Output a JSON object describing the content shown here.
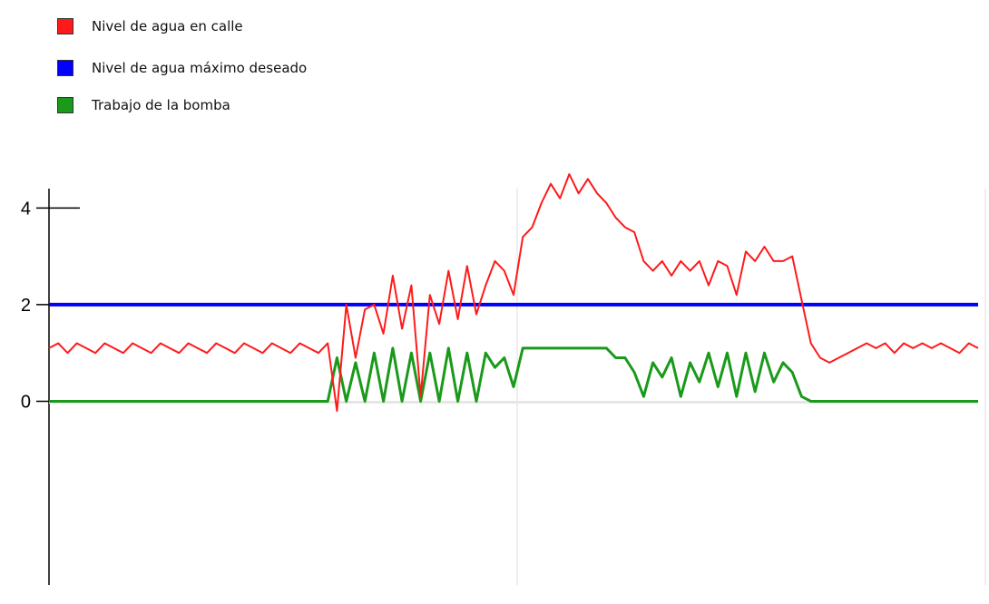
{
  "legend": {
    "items": [
      {
        "label": "Nivel de agua en calle",
        "color": "#ff1a1a"
      },
      {
        "label": "Nivel de agua máximo deseado",
        "color": "#0000ff"
      },
      {
        "label": "Trabajo de la bomba",
        "color": "#1a9a1a"
      }
    ]
  },
  "chart_data": {
    "type": "line",
    "title": "",
    "xlabel": "",
    "ylabel": "",
    "ylim": [
      -3.8,
      4.4
    ],
    "yticks": [
      0,
      2,
      4
    ],
    "ytick_labels": [
      "0",
      "2",
      "4"
    ],
    "grid": false,
    "legend_position": "top-left",
    "x": [
      0,
      10,
      20,
      30,
      40,
      50,
      60,
      70,
      80,
      90,
      100,
      110,
      120,
      130,
      140,
      150,
      160,
      170,
      180,
      190,
      200,
      210,
      220,
      230,
      240,
      250,
      260,
      270,
      280,
      290,
      300,
      310,
      320,
      330,
      340,
      350,
      360,
      370,
      380,
      390,
      400,
      410,
      420,
      430,
      440,
      450,
      460,
      470,
      480,
      490,
      500,
      510,
      520,
      530,
      540,
      550,
      560,
      570,
      580,
      590,
      600,
      610,
      620,
      630,
      640,
      650,
      660,
      670,
      680,
      690,
      700,
      710,
      720,
      730,
      740,
      750,
      760,
      770,
      780,
      790,
      800,
      810,
      820,
      830,
      840,
      850,
      860,
      870,
      880,
      890,
      900,
      910,
      920,
      930,
      940,
      950,
      960,
      970,
      980,
      990,
      1000
    ],
    "series": [
      {
        "name": "Nivel de agua en calle",
        "color": "#ff1a1a",
        "values": [
          1.1,
          1.2,
          1.0,
          1.2,
          1.1,
          1.0,
          1.2,
          1.1,
          1.0,
          1.2,
          1.1,
          1.0,
          1.2,
          1.1,
          1.0,
          1.2,
          1.1,
          1.0,
          1.2,
          1.1,
          1.0,
          1.2,
          1.1,
          1.0,
          1.2,
          1.1,
          1.0,
          1.2,
          1.1,
          1.0,
          1.2,
          -0.2,
          2.0,
          0.9,
          1.9,
          2.0,
          1.4,
          2.6,
          1.5,
          2.4,
          0.1,
          2.2,
          1.6,
          2.7,
          1.7,
          2.8,
          1.8,
          2.4,
          2.9,
          2.7,
          2.2,
          3.4,
          3.6,
          4.1,
          4.5,
          4.2,
          4.7,
          4.3,
          4.6,
          4.3,
          4.1,
          3.8,
          3.6,
          3.5,
          2.9,
          2.7,
          2.9,
          2.6,
          2.9,
          2.7,
          2.9,
          2.4,
          2.9,
          2.8,
          2.2,
          3.1,
          2.9,
          3.2,
          2.9,
          2.9,
          3.0,
          2.1,
          1.2,
          0.9,
          0.8,
          0.9,
          1.0,
          1.1,
          1.2,
          1.1,
          1.2,
          1.0,
          1.2,
          1.1,
          1.2,
          1.1,
          1.2,
          1.1,
          1.0,
          1.2,
          1.1
        ]
      },
      {
        "name": "Nivel de agua máximo deseado",
        "color": "#0000ff",
        "values": [
          2,
          2,
          2,
          2,
          2,
          2,
          2,
          2,
          2,
          2,
          2,
          2,
          2,
          2,
          2,
          2,
          2,
          2,
          2,
          2,
          2,
          2,
          2,
          2,
          2,
          2,
          2,
          2,
          2,
          2,
          2,
          2,
          2,
          2,
          2,
          2,
          2,
          2,
          2,
          2,
          2,
          2,
          2,
          2,
          2,
          2,
          2,
          2,
          2,
          2,
          2,
          2,
          2,
          2,
          2,
          2,
          2,
          2,
          2,
          2,
          2,
          2,
          2,
          2,
          2,
          2,
          2,
          2,
          2,
          2,
          2,
          2,
          2,
          2,
          2,
          2,
          2,
          2,
          2,
          2,
          2,
          2,
          2,
          2,
          2,
          2,
          2,
          2,
          2,
          2,
          2,
          2,
          2,
          2,
          2,
          2,
          2,
          2,
          2,
          2,
          2
        ]
      },
      {
        "name": "Trabajo de la bomba",
        "color": "#1a9a1a",
        "values": [
          0,
          0,
          0,
          0,
          0,
          0,
          0,
          0,
          0,
          0,
          0,
          0,
          0,
          0,
          0,
          0,
          0,
          0,
          0,
          0,
          0,
          0,
          0,
          0,
          0,
          0,
          0,
          0,
          0,
          0,
          0,
          0.9,
          0,
          0.8,
          0,
          1.0,
          0,
          1.1,
          0,
          1.0,
          0,
          1.0,
          0,
          1.1,
          0,
          1.0,
          0,
          1.0,
          0.7,
          0.9,
          0.3,
          1.1,
          1.1,
          1.1,
          1.1,
          1.1,
          1.1,
          1.1,
          1.1,
          1.1,
          1.1,
          0.9,
          0.9,
          0.6,
          0.1,
          0.8,
          0.5,
          0.9,
          0.1,
          0.8,
          0.4,
          1.0,
          0.3,
          1.0,
          0.1,
          1.0,
          0.2,
          1.0,
          0.4,
          0.8,
          0.6,
          0.1,
          0,
          0,
          0,
          0,
          0,
          0,
          0,
          0,
          0,
          0,
          0,
          0,
          0,
          0,
          0,
          0,
          0,
          0,
          0
        ]
      }
    ]
  }
}
